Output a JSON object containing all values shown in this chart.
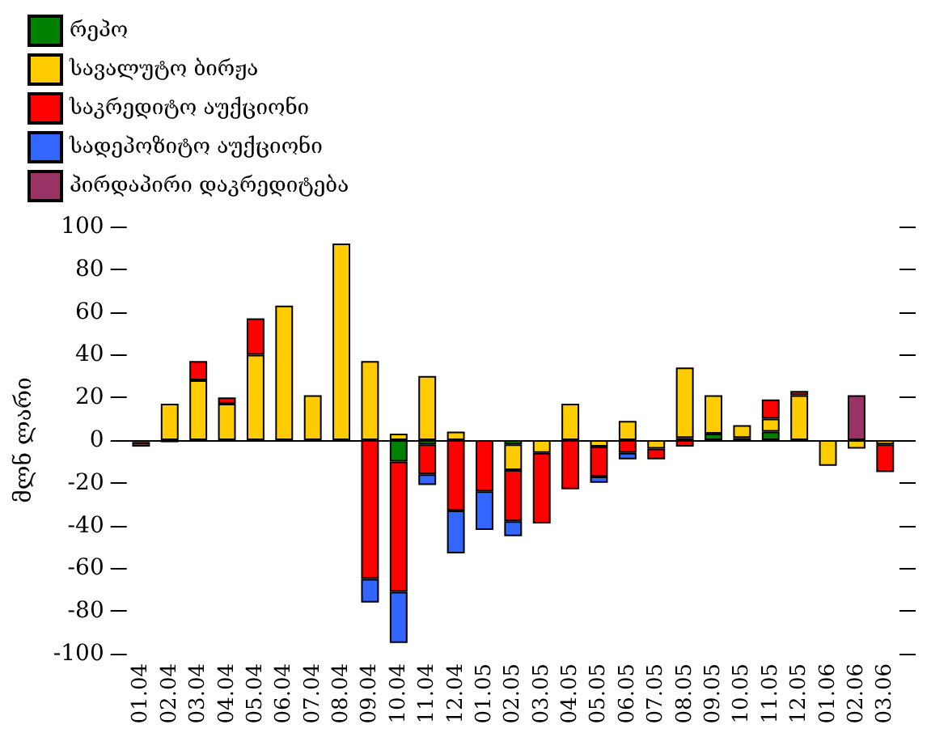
{
  "chart_data": {
    "type": "bar",
    "stacked": true,
    "ylabel": "მლნ ლარი",
    "categories": [
      "01.04",
      "02.04",
      "03.04",
      "04.04",
      "05.04",
      "06.04",
      "07.04",
      "08.04",
      "09.04",
      "10.04",
      "11.04",
      "12.04",
      "01.05",
      "02.05",
      "03.05",
      "04.05",
      "05.05",
      "06.05",
      "07.05",
      "08.05",
      "09.05",
      "10.05",
      "11.05",
      "12.05",
      "01.06",
      "02.06",
      "03.06"
    ],
    "series": [
      {
        "name": "რეპო",
        "color": "#008000",
        "values": [
          -1,
          -1,
          null,
          null,
          null,
          null,
          null,
          null,
          null,
          -10,
          -2,
          null,
          null,
          -2,
          null,
          null,
          null,
          null,
          null,
          1,
          3,
          1,
          4,
          null,
          null,
          null,
          null
        ]
      },
      {
        "name": "სავალუტო ბირჟა",
        "color": "#ffcc00",
        "values": [
          null,
          17,
          28,
          17,
          40,
          63,
          21,
          92,
          37,
          3,
          30,
          4,
          null,
          -12,
          -6,
          17,
          -3,
          9,
          -4,
          33,
          18,
          6,
          6,
          21,
          -12,
          -4,
          -2
        ]
      },
      {
        "name": "საკრედიტო აუქციონი",
        "color": "#ff0000",
        "values": [
          -2,
          null,
          9,
          3,
          17,
          null,
          null,
          null,
          -65,
          -61,
          -14,
          -33,
          -24,
          -24,
          -33,
          -23,
          -14,
          -6,
          -5,
          -3,
          null,
          null,
          9,
          2,
          null,
          null,
          -13
        ]
      },
      {
        "name": "სადეპოზიტო აუქციონი",
        "color": "#3366ff",
        "values": [
          null,
          null,
          null,
          null,
          null,
          null,
          null,
          null,
          -11,
          -24,
          -5,
          -20,
          -18,
          -7,
          null,
          null,
          -3,
          -3,
          null,
          null,
          null,
          null,
          null,
          null,
          null,
          null,
          null
        ]
      },
      {
        "name": "პირდაპირი დაკრედიტება",
        "color": "#993366",
        "values": [
          null,
          null,
          null,
          null,
          null,
          null,
          null,
          null,
          null,
          null,
          null,
          null,
          null,
          null,
          null,
          null,
          null,
          null,
          null,
          null,
          null,
          null,
          null,
          null,
          null,
          21,
          null
        ]
      }
    ],
    "ylim": [
      -100,
      100
    ],
    "yticks": [
      -100,
      -80,
      -60,
      -40,
      -20,
      0,
      20,
      40,
      60,
      80,
      100
    ],
    "legend": "top left"
  }
}
